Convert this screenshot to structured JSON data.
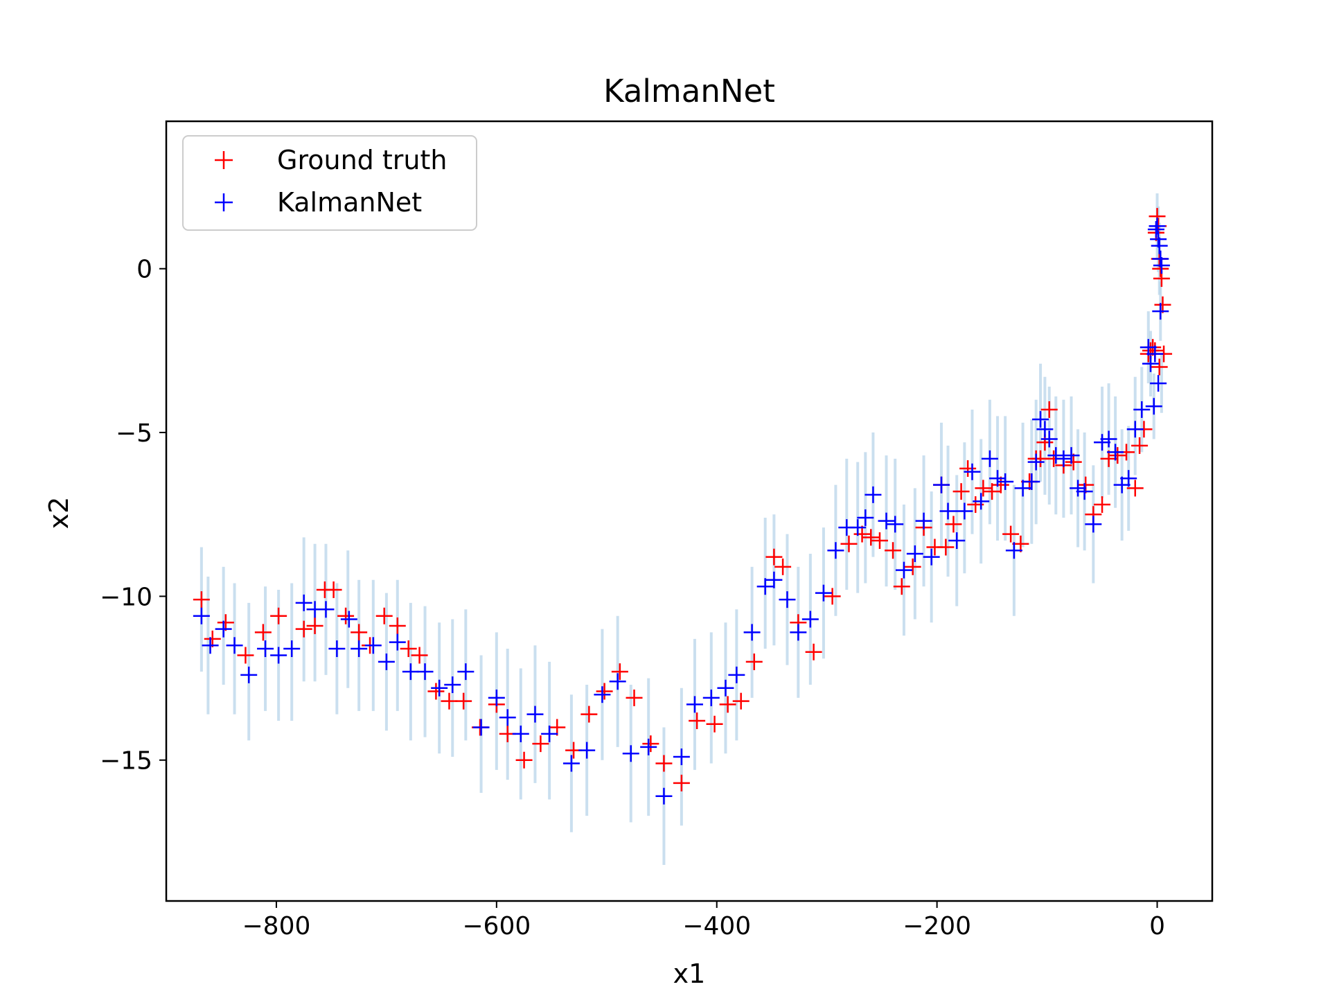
{
  "chart_data": {
    "type": "scatter",
    "title": "KalmanNet",
    "xlabel": "x1",
    "ylabel": "x2",
    "xlim": [
      -900,
      50
    ],
    "ylim": [
      -19.3,
      4.5
    ],
    "xticks": [
      -800,
      -600,
      -400,
      -200,
      0
    ],
    "xtick_labels": [
      "−800",
      "−600",
      "−400",
      "−200",
      "0"
    ],
    "yticks": [
      0,
      -5,
      -10,
      -15
    ],
    "ytick_labels": [
      "0",
      "−5",
      "−10",
      "−15"
    ],
    "grid": false,
    "legend": {
      "placement": "top-left"
    },
    "band": {
      "color": "#b8d4ea",
      "points": [
        [
          -868,
          -10.4,
          1.9
        ],
        [
          -862,
          -11.5,
          2.1
        ],
        [
          -848,
          -10.9,
          1.8
        ],
        [
          -838,
          -11.6,
          2.0
        ],
        [
          -825,
          -12.3,
          2.1
        ],
        [
          -810,
          -11.6,
          1.9
        ],
        [
          -798,
          -11.8,
          2.0
        ],
        [
          -786,
          -11.7,
          2.1
        ],
        [
          -775,
          -10.4,
          2.2
        ],
        [
          -765,
          -10.5,
          2.1
        ],
        [
          -755,
          -10.4,
          2.0
        ],
        [
          -745,
          -11.6,
          2.0
        ],
        [
          -735,
          -10.7,
          2.1
        ],
        [
          -725,
          -11.5,
          2.0
        ],
        [
          -712,
          -11.5,
          2.0
        ],
        [
          -700,
          -12.0,
          2.1
        ],
        [
          -690,
          -11.5,
          2.0
        ],
        [
          -678,
          -12.3,
          2.1
        ],
        [
          -665,
          -12.3,
          2.0
        ],
        [
          -652,
          -12.8,
          2.0
        ],
        [
          -640,
          -12.8,
          2.1
        ],
        [
          -628,
          -12.4,
          2.0
        ],
        [
          -614,
          -13.9,
          2.1
        ],
        [
          -600,
          -13.2,
          2.1
        ],
        [
          -590,
          -13.6,
          2.0
        ],
        [
          -578,
          -14.2,
          2.0
        ],
        [
          -565,
          -13.6,
          2.1
        ],
        [
          -552,
          -14.1,
          2.1
        ],
        [
          -532,
          -15.1,
          2.1
        ],
        [
          -518,
          -14.7,
          2.0
        ],
        [
          -504,
          -13.0,
          2.0
        ],
        [
          -490,
          -12.6,
          2.0
        ],
        [
          -478,
          -14.8,
          2.1
        ],
        [
          -462,
          -14.6,
          2.1
        ],
        [
          -448,
          -16.1,
          2.1
        ],
        [
          -432,
          -14.9,
          2.1
        ],
        [
          -420,
          -13.3,
          2.0
        ],
        [
          -405,
          -13.1,
          2.0
        ],
        [
          -392,
          -12.8,
          2.0
        ],
        [
          -382,
          -12.4,
          2.0
        ],
        [
          -368,
          -11.1,
          2.0
        ],
        [
          -356,
          -9.6,
          2.0
        ],
        [
          -348,
          -9.5,
          2.0
        ],
        [
          -336,
          -10.1,
          2.0
        ],
        [
          -326,
          -11.1,
          2.0
        ],
        [
          -315,
          -10.7,
          2.0
        ],
        [
          -303,
          -9.9,
          2.0
        ],
        [
          -292,
          -8.6,
          2.0
        ],
        [
          -282,
          -7.8,
          2.0
        ],
        [
          -272,
          -7.9,
          2.0
        ],
        [
          -265,
          -7.6,
          2.0
        ],
        [
          -258,
          -6.9,
          1.9
        ],
        [
          -246,
          -7.7,
          2.0
        ],
        [
          -238,
          -7.8,
          2.0
        ],
        [
          -230,
          -9.2,
          2.0
        ],
        [
          -220,
          -8.7,
          2.0
        ],
        [
          -212,
          -7.7,
          2.0
        ],
        [
          -205,
          -8.8,
          2.0
        ],
        [
          -196,
          -6.6,
          1.9
        ],
        [
          -190,
          -7.4,
          2.0
        ],
        [
          -182,
          -8.3,
          2.0
        ],
        [
          -175,
          -7.3,
          2.0
        ],
        [
          -168,
          -6.2,
          1.9
        ],
        [
          -160,
          -7.1,
          1.9
        ],
        [
          -152,
          -5.9,
          1.9
        ],
        [
          -145,
          -6.4,
          1.9
        ],
        [
          -138,
          -6.4,
          1.9
        ],
        [
          -130,
          -8.6,
          2.0
        ],
        [
          -122,
          -6.6,
          1.9
        ],
        [
          -114,
          -6.5,
          1.9
        ],
        [
          -110,
          -5.9,
          1.9
        ],
        [
          -106,
          -4.7,
          1.8
        ],
        [
          -102,
          -5.1,
          1.8
        ],
        [
          -98,
          -5.4,
          1.8
        ],
        [
          -92,
          -5.7,
          1.8
        ],
        [
          -85,
          -5.8,
          1.8
        ],
        [
          -78,
          -5.7,
          1.8
        ],
        [
          -72,
          -6.7,
          1.8
        ],
        [
          -66,
          -6.8,
          1.8
        ],
        [
          -58,
          -7.8,
          1.8
        ],
        [
          -50,
          -5.3,
          1.7
        ],
        [
          -44,
          -5.2,
          1.7
        ],
        [
          -38,
          -5.6,
          1.7
        ],
        [
          -32,
          -6.6,
          1.7
        ],
        [
          -26,
          -6.4,
          1.6
        ],
        [
          -20,
          -4.8,
          1.5
        ],
        [
          -14,
          -4.3,
          1.3
        ],
        [
          -8,
          -2.4,
          1.1
        ],
        [
          -6,
          -2.9,
          1.0
        ],
        [
          -3,
          -4.2,
          1.0
        ],
        [
          0,
          1.3,
          1.0
        ],
        [
          1,
          0.9,
          1.0
        ],
        [
          2,
          0.3,
          1.1
        ],
        [
          3,
          -1.3,
          0.9
        ],
        [
          4,
          -3.5,
          0.9
        ]
      ]
    },
    "series": [
      {
        "name": "Ground truth",
        "color": "#ff0000",
        "marker": "plus",
        "points": [
          [
            -868,
            -10.1
          ],
          [
            -858,
            -11.3
          ],
          [
            -846,
            -10.8
          ],
          [
            -828,
            -11.8
          ],
          [
            -812,
            -11.1
          ],
          [
            -798,
            -10.6
          ],
          [
            -775,
            -11.0
          ],
          [
            -765,
            -10.9
          ],
          [
            -756,
            -9.8
          ],
          [
            -748,
            -9.8
          ],
          [
            -737,
            -10.6
          ],
          [
            -725,
            -11.1
          ],
          [
            -715,
            -11.5
          ],
          [
            -702,
            -10.6
          ],
          [
            -690,
            -10.9
          ],
          [
            -680,
            -11.6
          ],
          [
            -670,
            -11.8
          ],
          [
            -655,
            -12.9
          ],
          [
            -643,
            -13.2
          ],
          [
            -630,
            -13.2
          ],
          [
            -615,
            -14.0
          ],
          [
            -600,
            -13.3
          ],
          [
            -590,
            -14.2
          ],
          [
            -575,
            -15.0
          ],
          [
            -560,
            -14.5
          ],
          [
            -545,
            -14.0
          ],
          [
            -530,
            -14.7
          ],
          [
            -516,
            -13.6
          ],
          [
            -502,
            -12.9
          ],
          [
            -488,
            -12.3
          ],
          [
            -475,
            -13.1
          ],
          [
            -460,
            -14.5
          ],
          [
            -448,
            -15.1
          ],
          [
            -432,
            -15.7
          ],
          [
            -418,
            -13.8
          ],
          [
            -402,
            -13.9
          ],
          [
            -390,
            -13.3
          ],
          [
            -378,
            -13.2
          ],
          [
            -366,
            -12.0
          ],
          [
            -348,
            -8.8
          ],
          [
            -340,
            -9.1
          ],
          [
            -326,
            -10.8
          ],
          [
            -312,
            -11.7
          ],
          [
            -295,
            -10.0
          ],
          [
            -280,
            -8.4
          ],
          [
            -268,
            -8.1
          ],
          [
            -260,
            -8.2
          ],
          [
            -252,
            -8.3
          ],
          [
            -240,
            -8.6
          ],
          [
            -232,
            -9.7
          ],
          [
            -222,
            -9.1
          ],
          [
            -212,
            -7.9
          ],
          [
            -202,
            -8.5
          ],
          [
            -196,
            -6.6
          ],
          [
            -192,
            -8.5
          ],
          [
            -185,
            -7.8
          ],
          [
            -178,
            -6.8
          ],
          [
            -172,
            -6.1
          ],
          [
            -165,
            -7.2
          ],
          [
            -158,
            -6.7
          ],
          [
            -150,
            -6.8
          ],
          [
            -142,
            -6.6
          ],
          [
            -133,
            -8.1
          ],
          [
            -124,
            -8.4
          ],
          [
            -116,
            -6.5
          ],
          [
            -110,
            -5.8
          ],
          [
            -106,
            -5.8
          ],
          [
            -102,
            -5.3
          ],
          [
            -98,
            -4.3
          ],
          [
            -94,
            -5.8
          ],
          [
            -85,
            -6.0
          ],
          [
            -76,
            -5.9
          ],
          [
            -65,
            -6.6
          ],
          [
            -58,
            -7.5
          ],
          [
            -50,
            -7.2
          ],
          [
            -44,
            -5.8
          ],
          [
            -36,
            -5.7
          ],
          [
            -28,
            -5.6
          ],
          [
            -20,
            -6.7
          ],
          [
            -16,
            -5.4
          ],
          [
            -12,
            -4.9
          ],
          [
            -8,
            -2.6
          ],
          [
            -6,
            -2.5
          ],
          [
            -4,
            -2.4
          ],
          [
            -2,
            -2.5
          ],
          [
            0,
            1.6
          ],
          [
            1,
            1.3
          ],
          [
            2,
            0.3
          ],
          [
            3,
            0.0
          ],
          [
            4,
            -0.3
          ],
          [
            5,
            -1.1
          ],
          [
            6,
            -2.6
          ],
          [
            2,
            -3.0
          ],
          [
            -1,
            1.1
          ]
        ]
      },
      {
        "name": "KalmanNet",
        "color": "#0000ff",
        "marker": "plus",
        "points": [
          [
            -868,
            -10.6
          ],
          [
            -860,
            -11.5
          ],
          [
            -848,
            -11.0
          ],
          [
            -838,
            -11.5
          ],
          [
            -825,
            -12.4
          ],
          [
            -810,
            -11.6
          ],
          [
            -798,
            -11.8
          ],
          [
            -786,
            -11.6
          ],
          [
            -775,
            -10.2
          ],
          [
            -765,
            -10.4
          ],
          [
            -755,
            -10.4
          ],
          [
            -745,
            -11.6
          ],
          [
            -734,
            -10.7
          ],
          [
            -725,
            -11.6
          ],
          [
            -712,
            -11.5
          ],
          [
            -700,
            -12.0
          ],
          [
            -690,
            -11.4
          ],
          [
            -678,
            -12.3
          ],
          [
            -665,
            -12.3
          ],
          [
            -652,
            -12.8
          ],
          [
            -640,
            -12.7
          ],
          [
            -628,
            -12.3
          ],
          [
            -614,
            -14.0
          ],
          [
            -600,
            -13.1
          ],
          [
            -590,
            -13.7
          ],
          [
            -578,
            -14.2
          ],
          [
            -565,
            -13.6
          ],
          [
            -552,
            -14.2
          ],
          [
            -532,
            -15.1
          ],
          [
            -518,
            -14.7
          ],
          [
            -504,
            -13.0
          ],
          [
            -490,
            -12.6
          ],
          [
            -478,
            -14.8
          ],
          [
            -462,
            -14.6
          ],
          [
            -448,
            -16.1
          ],
          [
            -432,
            -14.9
          ],
          [
            -420,
            -13.3
          ],
          [
            -405,
            -13.1
          ],
          [
            -392,
            -12.8
          ],
          [
            -382,
            -12.4
          ],
          [
            -368,
            -11.1
          ],
          [
            -356,
            -9.7
          ],
          [
            -348,
            -9.5
          ],
          [
            -336,
            -10.1
          ],
          [
            -326,
            -11.1
          ],
          [
            -315,
            -10.7
          ],
          [
            -303,
            -9.9
          ],
          [
            -292,
            -8.6
          ],
          [
            -282,
            -7.9
          ],
          [
            -272,
            -7.9
          ],
          [
            -265,
            -7.6
          ],
          [
            -258,
            -6.9
          ],
          [
            -246,
            -7.7
          ],
          [
            -238,
            -7.8
          ],
          [
            -230,
            -9.2
          ],
          [
            -220,
            -8.7
          ],
          [
            -212,
            -7.7
          ],
          [
            -205,
            -8.8
          ],
          [
            -196,
            -6.6
          ],
          [
            -190,
            -7.4
          ],
          [
            -182,
            -8.3
          ],
          [
            -175,
            -7.4
          ],
          [
            -168,
            -6.2
          ],
          [
            -160,
            -7.1
          ],
          [
            -152,
            -5.8
          ],
          [
            -145,
            -6.4
          ],
          [
            -138,
            -6.5
          ],
          [
            -130,
            -8.6
          ],
          [
            -122,
            -6.7
          ],
          [
            -114,
            -6.5
          ],
          [
            -110,
            -5.9
          ],
          [
            -106,
            -4.6
          ],
          [
            -102,
            -4.9
          ],
          [
            -98,
            -5.2
          ],
          [
            -92,
            -5.7
          ],
          [
            -85,
            -5.8
          ],
          [
            -78,
            -5.7
          ],
          [
            -72,
            -6.7
          ],
          [
            -66,
            -6.8
          ],
          [
            -58,
            -7.8
          ],
          [
            -50,
            -5.3
          ],
          [
            -44,
            -5.2
          ],
          [
            -38,
            -5.6
          ],
          [
            -32,
            -6.6
          ],
          [
            -26,
            -6.4
          ],
          [
            -20,
            -4.9
          ],
          [
            -14,
            -4.3
          ],
          [
            -8,
            -2.4
          ],
          [
            -6,
            -2.9
          ],
          [
            -3,
            -4.2
          ],
          [
            -2,
            -2.6
          ],
          [
            0,
            1.3
          ],
          [
            1,
            0.9
          ],
          [
            2,
            0.7
          ],
          [
            3,
            0.3
          ],
          [
            4,
            0.1
          ],
          [
            3,
            -1.3
          ],
          [
            1,
            -3.5
          ],
          [
            -1,
            1.2
          ]
        ]
      }
    ]
  }
}
